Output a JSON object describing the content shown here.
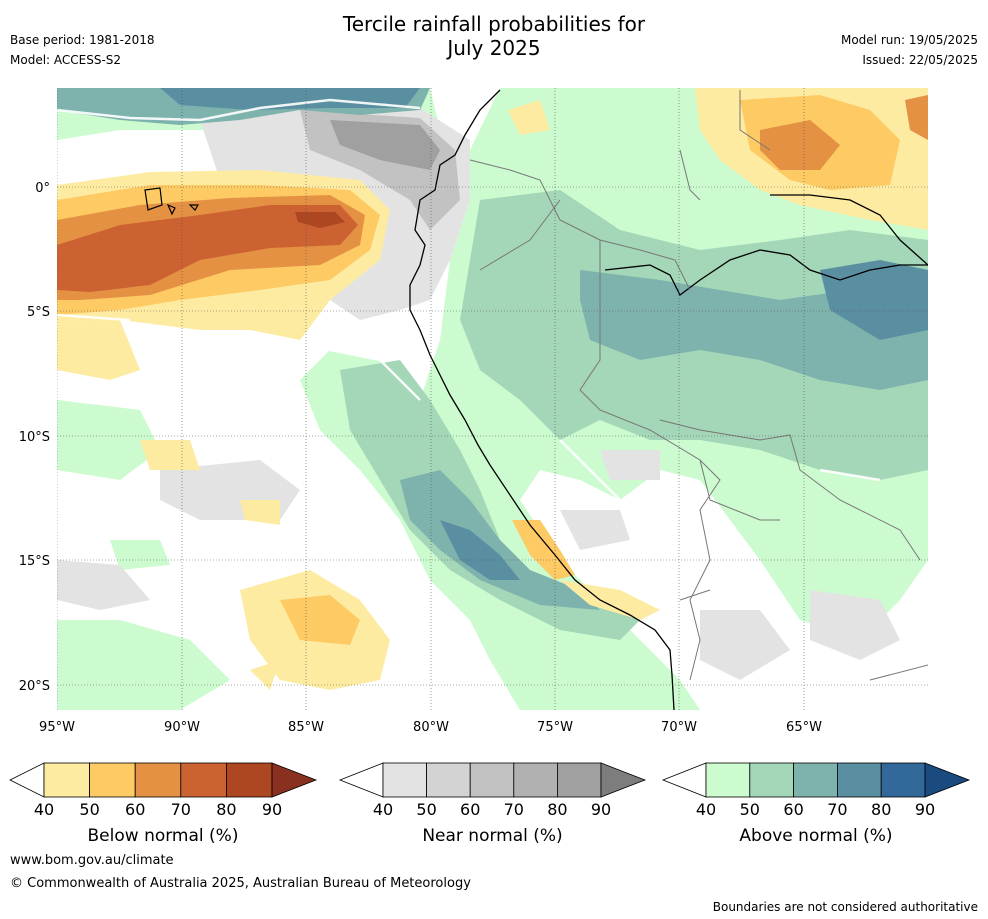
{
  "title_line1": "Tercile rainfall probabilities for",
  "title_line2": "July 2025",
  "base_period": "Base period: 1981-2018",
  "model": "Model: ACCESS-S2",
  "model_run": "Model run: 19/05/2025",
  "issued": "Issued: 22/05/2025",
  "map": {
    "lat_labels": [
      "0°",
      "5°S",
      "10°S",
      "15°S",
      "20°S"
    ],
    "lon_labels": [
      "95°W",
      "90°W",
      "85°W",
      "80°W",
      "75°W",
      "70°W",
      "65°W"
    ],
    "regions_description": [
      "Below normal band west of Galapagos",
      "Near normal grey over Ecuador coast",
      "Above normal teal over Amazon and Peru coast"
    ]
  },
  "legends": [
    {
      "name": "Below normal (%)",
      "ticks": [
        "40",
        "50",
        "60",
        "70",
        "80",
        "90"
      ],
      "colors": [
        "#ffffff",
        "#feeba2",
        "#fdca63",
        "#e49144",
        "#cc6231",
        "#ac4722",
        "#8a3020"
      ]
    },
    {
      "name": "Near normal (%)",
      "ticks": [
        "40",
        "50",
        "60",
        "70",
        "80",
        "90"
      ],
      "colors": [
        "#ffffff",
        "#e3e3e3",
        "#d3d3d3",
        "#c2c2c2",
        "#b1b1b1",
        "#a0a0a0",
        "#7d7d7d"
      ]
    },
    {
      "name": "Above normal (%)",
      "ticks": [
        "40",
        "50",
        "60",
        "70",
        "80",
        "90"
      ],
      "colors": [
        "#ffffff",
        "#ccfbcf",
        "#a4d6b8",
        "#7eb3ad",
        "#5a8fa1",
        "#33689b",
        "#1a4a7f"
      ]
    }
  ],
  "footer": {
    "url": "www.bom.gov.au/climate",
    "copyright": "© Commonwealth of Australia 2025, Australian Bureau of Meteorology",
    "note": "Boundaries are not considered authoritative"
  }
}
